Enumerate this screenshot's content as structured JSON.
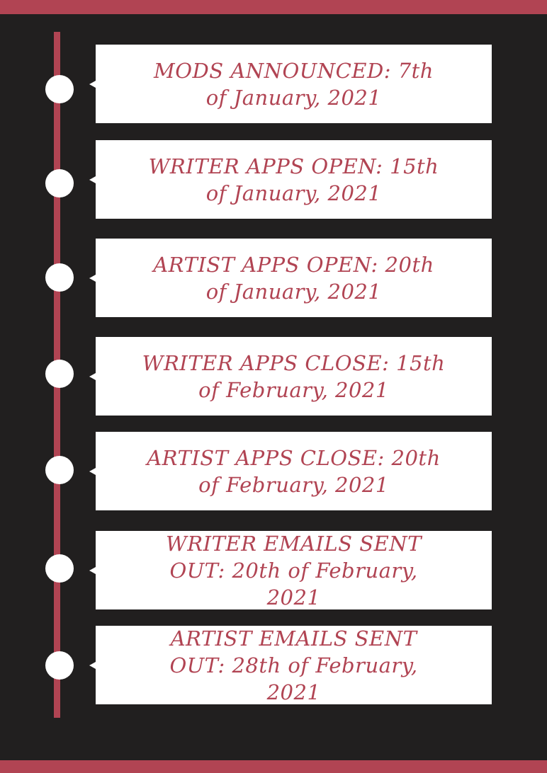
{
  "colors": {
    "accent": "#b14453",
    "background": "#211f1f",
    "card": "#ffffff"
  },
  "events": [
    {
      "label": "MODS ANNOUNCED: 7th of January, 2021"
    },
    {
      "label": "WRITER APPS OPEN: 15th of January, 2021"
    },
    {
      "label": "ARTIST APPS OPEN: 20th of January, 2021"
    },
    {
      "label": "WRITER APPS CLOSE: 15th of February, 2021"
    },
    {
      "label": "ARTIST APPS CLOSE: 20th of February, 2021"
    },
    {
      "label": "WRITER EMAILS SENT OUT: 20th of February, 2021"
    },
    {
      "label": "ARTIST EMAILS SENT OUT: 28th of February, 2021"
    }
  ]
}
